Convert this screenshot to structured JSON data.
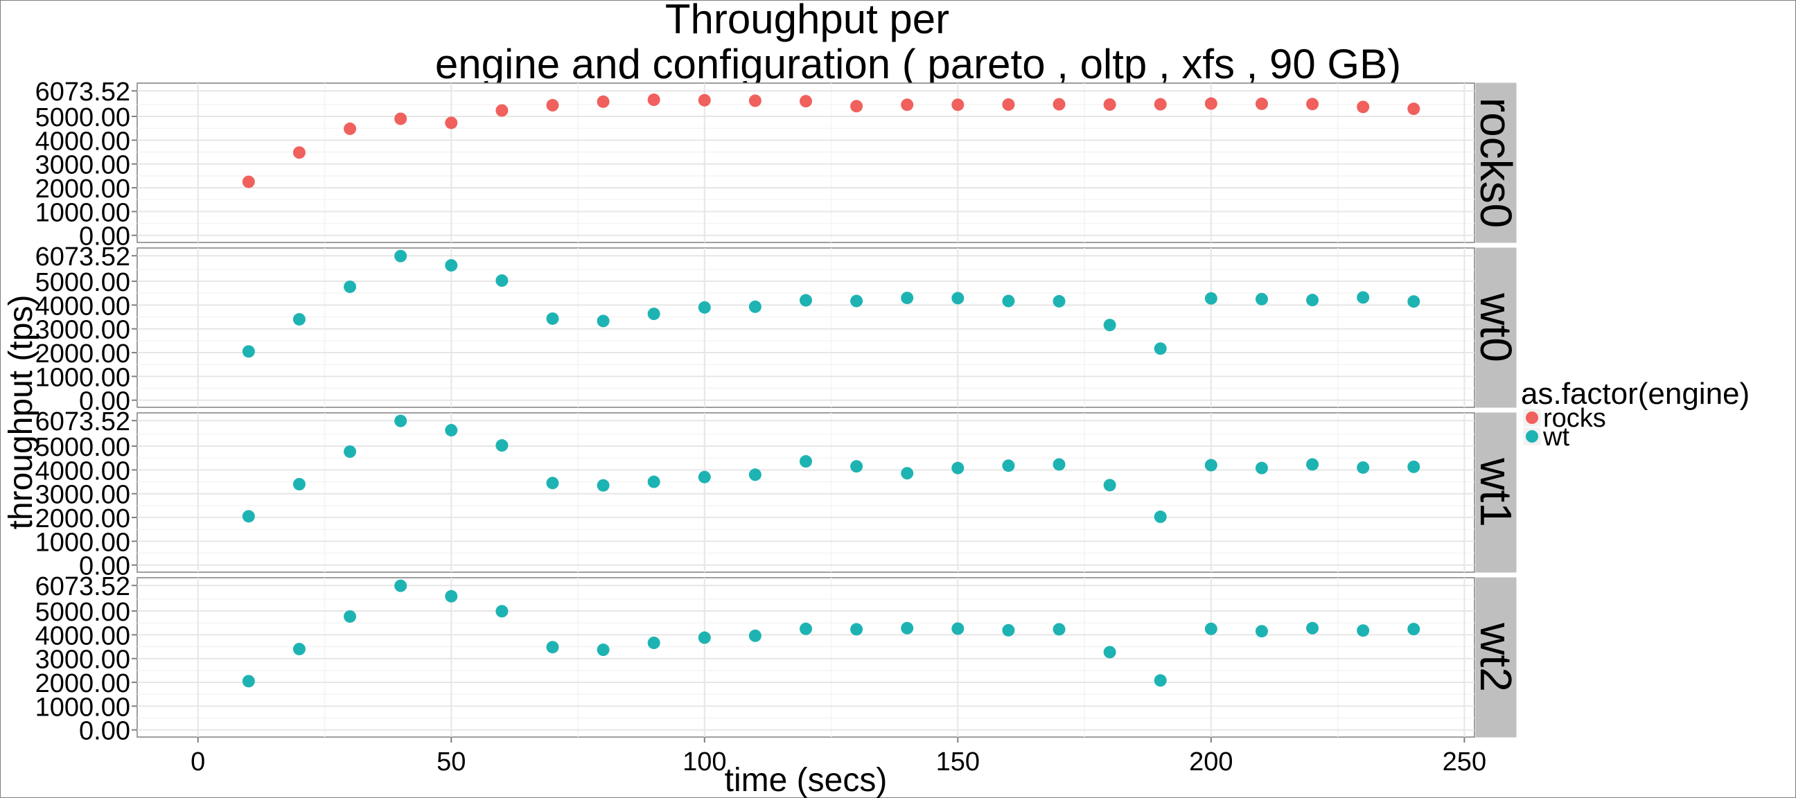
{
  "chart_data": {
    "type": "scatter",
    "title": "Throughput per\n engine and configuration ( pareto , oltp , xfs ,  90 GB)",
    "title_lines": [
      "Throughput per",
      "engine and configuration ( pareto , oltp , xfs ,  90 GB)"
    ],
    "xlabel": "time (secs)",
    "ylabel": "throughput (tps)",
    "xlim": [
      -12,
      252
    ],
    "ylim": [
      -300,
      6400
    ],
    "x_ticks": [
      0,
      50,
      100,
      150,
      200,
      250
    ],
    "x_tick_labels": [
      "0",
      "50",
      "100",
      "150",
      "200",
      "250"
    ],
    "y_ticks": [
      0,
      1000,
      2000,
      3000,
      4000,
      5000,
      6073.52
    ],
    "y_tick_labels": [
      "0.00",
      "1000.00",
      "2000.00",
      "3000.00",
      "4000.00",
      "5000.00",
      "6073.52"
    ],
    "grid": true,
    "legend": {
      "title": "as.factor(engine)",
      "position": "right",
      "entries": [
        {
          "label": "rocks",
          "color": "#F0605D"
        },
        {
          "label": "wt",
          "color": "#1EB3B3"
        }
      ]
    },
    "x": [
      10,
      20,
      30,
      40,
      50,
      60,
      70,
      80,
      90,
      100,
      110,
      120,
      130,
      140,
      150,
      160,
      170,
      180,
      190,
      200,
      210,
      220,
      230,
      240
    ],
    "panels": [
      {
        "label": "rocks0",
        "engine": "rocks",
        "color": "#F0605D",
        "values": [
          2250,
          3480,
          4480,
          4900,
          4730,
          5250,
          5470,
          5620,
          5700,
          5680,
          5660,
          5640,
          5430,
          5490,
          5490,
          5500,
          5510,
          5500,
          5510,
          5540,
          5530,
          5520,
          5400,
          5320
        ]
      },
      {
        "label": "wt0",
        "engine": "wt",
        "color": "#1EB3B3",
        "values": [
          2050,
          3400,
          4770,
          6060,
          5670,
          5030,
          3430,
          3330,
          3630,
          3900,
          3930,
          4200,
          4170,
          4300,
          4290,
          4170,
          4160,
          3160,
          2170,
          4280,
          4250,
          4210,
          4320,
          4150
        ]
      },
      {
        "label": "wt1",
        "engine": "wt",
        "color": "#1EB3B3",
        "values": [
          2050,
          3400,
          4770,
          6060,
          5670,
          5030,
          3450,
          3350,
          3500,
          3700,
          3800,
          4360,
          4150,
          3860,
          4080,
          4180,
          4230,
          3360,
          2030,
          4200,
          4080,
          4230,
          4100,
          4130
        ]
      },
      {
        "label": "wt2",
        "engine": "wt",
        "color": "#1EB3B3",
        "values": [
          2050,
          3400,
          4770,
          6060,
          5620,
          4990,
          3480,
          3370,
          3660,
          3880,
          3960,
          4250,
          4230,
          4280,
          4260,
          4190,
          4230,
          3270,
          2080,
          4250,
          4150,
          4280,
          4180,
          4240
        ]
      }
    ]
  }
}
